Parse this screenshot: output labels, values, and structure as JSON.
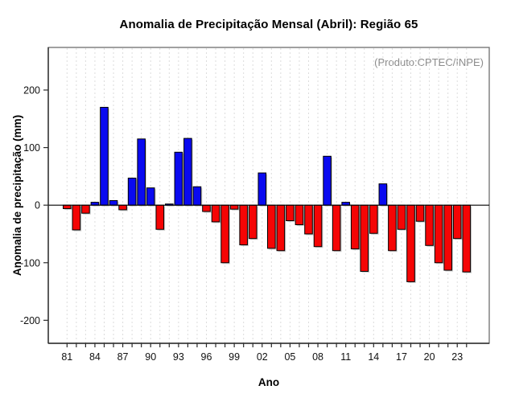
{
  "title": "Anomalia de Precipitação Mensal (Abril): Região 65",
  "annotation": "(Produto:CPTEC/INPE)",
  "chart_data": {
    "type": "bar",
    "title": "Anomalia de Precipitação Mensal (Abril): Região 65",
    "xlabel": "Ano",
    "ylabel": "Anomalia de precipitação (mm)",
    "annotation": "(Produto:CPTEC/INPE)",
    "legend": "none",
    "grid": "vertical-dashed-per-year",
    "x": [
      1981,
      1982,
      1983,
      1984,
      1985,
      1986,
      1987,
      1988,
      1989,
      1990,
      1991,
      1992,
      1993,
      1994,
      1995,
      1996,
      1997,
      1998,
      1999,
      2000,
      2001,
      2002,
      2003,
      2004,
      2005,
      2006,
      2007,
      2008,
      2009,
      2010,
      2011,
      2012,
      2013,
      2014,
      2015,
      2016,
      2017,
      2018,
      2019,
      2020,
      2021,
      2022,
      2023,
      2024
    ],
    "values": [
      -6,
      -43,
      -14,
      5,
      170,
      8,
      -8,
      47,
      115,
      30,
      -42,
      2,
      92,
      116,
      32,
      -11,
      -29,
      -100,
      -7,
      -69,
      -58,
      56,
      -75,
      -79,
      -27,
      -34,
      -50,
      -72,
      85,
      -79,
      5,
      -76,
      -115,
      -49,
      37,
      -79,
      -42,
      -133,
      -28,
      -70,
      -100,
      -113,
      -58,
      -116
    ],
    "x_tick_years": [
      1981,
      1984,
      1987,
      1990,
      1993,
      1996,
      1999,
      2002,
      2005,
      2008,
      2011,
      2014,
      2017,
      2020,
      2023
    ],
    "x_tick_labels": [
      "81",
      "84",
      "87",
      "90",
      "93",
      "96",
      "99",
      "02",
      "05",
      "08",
      "11",
      "14",
      "17",
      "20",
      "23"
    ],
    "y_ticks": [
      -200,
      -100,
      0,
      100,
      200
    ],
    "y_tick_labels": [
      "-200",
      "-100",
      "0",
      "100",
      "200"
    ],
    "ylim": [
      -240,
      274
    ],
    "colors": {
      "positive": "#0a0af0",
      "negative": "#f50505",
      "bar_outline": "#000000",
      "zero_line": "#000000",
      "grid": "#dcdcdc",
      "frame": "#6e6e6e",
      "axis": "#2a2a2a",
      "tick_text": "#111111",
      "annotation_text": "#8c8c8c",
      "shadow": "#a9a9a9"
    }
  }
}
